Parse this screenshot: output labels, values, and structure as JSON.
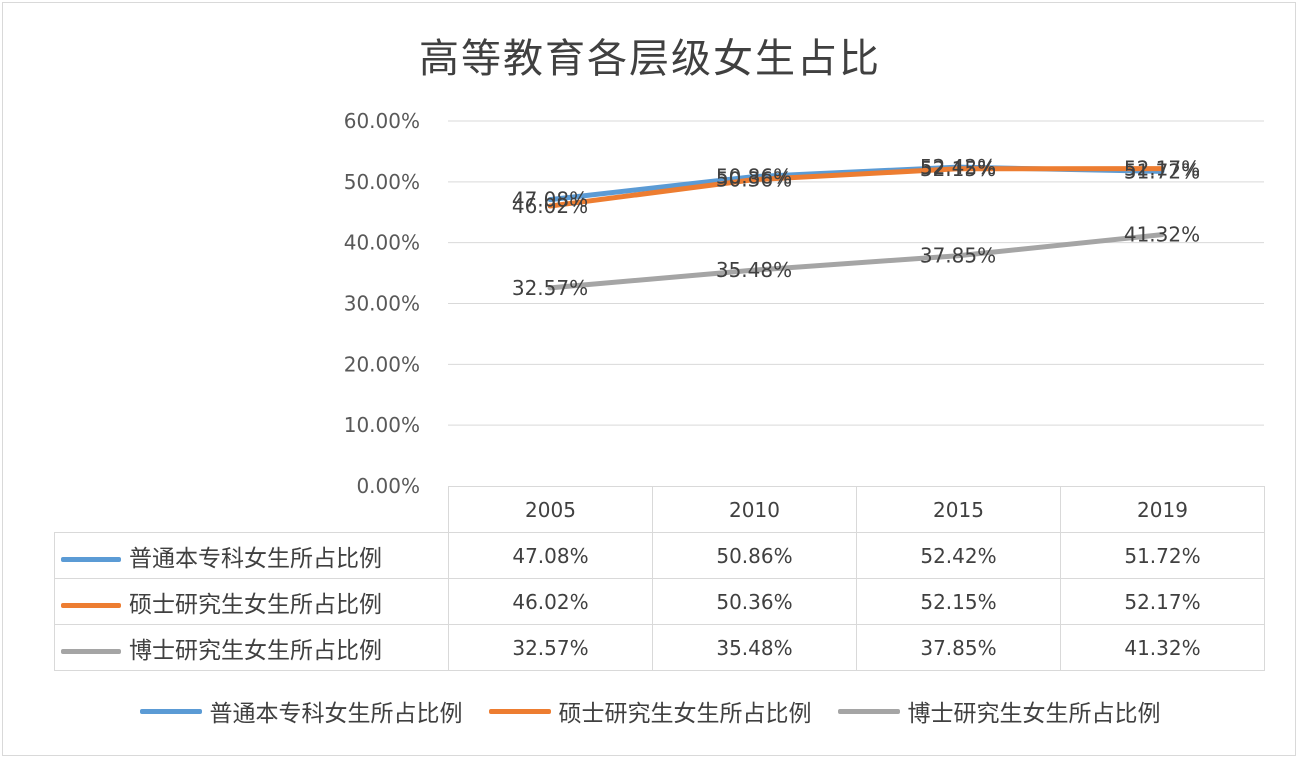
{
  "chart_data": {
    "type": "line",
    "title": "高等教育各层级女生占比",
    "categories": [
      "2005",
      "2010",
      "2015",
      "2019"
    ],
    "ylim": [
      0,
      60
    ],
    "yticks": [
      "0.00%",
      "10.00%",
      "20.00%",
      "30.00%",
      "40.00%",
      "50.00%",
      "60.00%"
    ],
    "grid": true,
    "legend_position": "bottom",
    "series": [
      {
        "name": "普通本专科女生所占比例",
        "color": "#5b9bd5",
        "values": [
          47.08,
          50.86,
          52.42,
          51.72
        ],
        "labels": [
          "47.08%",
          "50.86%",
          "52.42%",
          "51.72%"
        ]
      },
      {
        "name": "硕士研究生女生所占比例",
        "color": "#ed7d31",
        "values": [
          46.02,
          50.36,
          52.15,
          52.17
        ],
        "labels": [
          "46.02%",
          "50.36%",
          "52.15%",
          "52.17%"
        ]
      },
      {
        "name": "博士研究生女生所占比例",
        "color": "#a5a5a5",
        "values": [
          32.57,
          35.48,
          37.85,
          41.32
        ],
        "labels": [
          "32.57%",
          "35.48%",
          "37.85%",
          "41.32%"
        ]
      }
    ]
  }
}
